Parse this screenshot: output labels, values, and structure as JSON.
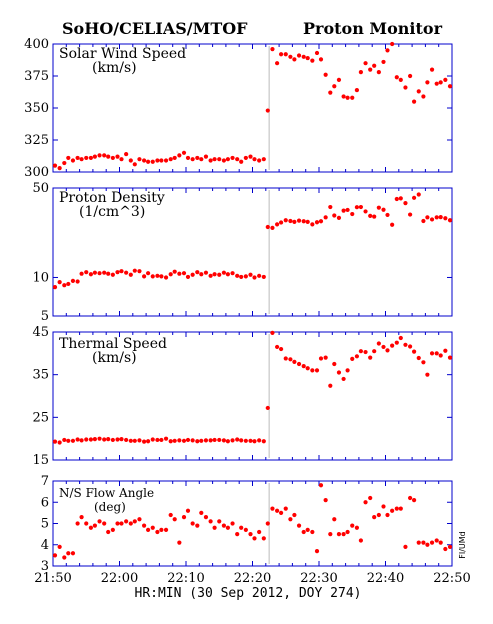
{
  "header": {
    "left_title": "SoHO/CELIAS/MTOF",
    "right_title": "Proton Monitor"
  },
  "xaxis": {
    "label": "HR:MIN (30 Sep 2012, DOY 274)",
    "ticks": [
      "21:50",
      "22:00",
      "22:10",
      "22:20",
      "22:30",
      "22:40",
      "22:50"
    ],
    "tick_minutes": [
      0,
      10,
      20,
      30,
      40,
      50,
      60
    ],
    "range_minutes": [
      0,
      60
    ],
    "marker_minute": 32.5
  },
  "credit": "FI/UMd",
  "colors": {
    "frame": "#0000cc",
    "points": "#ff0000",
    "marker": "#bbbbbb"
  },
  "chart_data": [
    {
      "type": "scatter",
      "label_line1": "Solar Wind Speed",
      "label_line2": "(km/s)",
      "scale": "linear",
      "ylim": [
        300,
        400
      ],
      "yticks": [
        300,
        325,
        350,
        375,
        400
      ],
      "x": [
        0.3,
        1.0,
        1.7,
        2.3,
        3.0,
        3.7,
        4.3,
        5.0,
        5.7,
        6.3,
        7.0,
        7.7,
        8.3,
        9.0,
        9.7,
        10.3,
        11.0,
        11.7,
        12.3,
        13.0,
        13.7,
        14.3,
        15.0,
        15.7,
        16.3,
        17.0,
        17.7,
        18.3,
        19.0,
        19.7,
        20.3,
        21.0,
        21.7,
        22.3,
        23.0,
        23.7,
        24.3,
        25.0,
        25.7,
        26.3,
        27.0,
        27.7,
        28.3,
        29.0,
        29.7,
        30.3,
        31.0,
        31.7,
        32.3,
        33.0,
        33.7,
        34.3,
        35.0,
        35.7,
        36.3,
        37.0,
        37.7,
        38.3,
        39.0,
        39.7,
        40.3,
        41.0,
        41.7,
        42.3,
        43.0,
        43.7,
        44.3,
        45.0,
        45.7,
        46.3,
        47.0,
        47.7,
        48.3,
        49.0,
        49.7,
        50.3,
        51.0,
        51.7,
        52.3,
        53.0,
        53.7,
        54.3,
        55.0,
        55.7,
        56.3,
        57.0,
        57.7,
        58.3,
        59.0,
        59.7
      ],
      "y": [
        305,
        303,
        307,
        311,
        309,
        311,
        310,
        311,
        311,
        312,
        313,
        313,
        312,
        311,
        312,
        310,
        314,
        309,
        306,
        310,
        309,
        308,
        308,
        309,
        309,
        309,
        310,
        311,
        313,
        315,
        311,
        310,
        311,
        310,
        312,
        309,
        310,
        310,
        309,
        310,
        311,
        310,
        308,
        311,
        312,
        310,
        309,
        310,
        348,
        396,
        385,
        392,
        392,
        390,
        388,
        391,
        390,
        389,
        387,
        393,
        388,
        376,
        362,
        367,
        372,
        359,
        358,
        358,
        364,
        378,
        385,
        380,
        383,
        378,
        386,
        395,
        400,
        374,
        372,
        366,
        375,
        355,
        363,
        359,
        370,
        380,
        369,
        370,
        372,
        367
      ]
    },
    {
      "type": "scatter",
      "label_line1": "Proton Density",
      "label_line2": "(1/cm^3)",
      "scale": "log",
      "ylim": [
        5,
        50
      ],
      "yticks": [
        5,
        10,
        50
      ],
      "x": [
        0.3,
        1.0,
        1.7,
        2.3,
        3.0,
        3.7,
        4.3,
        5.0,
        5.7,
        6.3,
        7.0,
        7.7,
        8.3,
        9.0,
        9.7,
        10.3,
        11.0,
        11.7,
        12.3,
        13.0,
        13.7,
        14.3,
        15.0,
        15.7,
        16.3,
        17.0,
        17.7,
        18.3,
        19.0,
        19.7,
        20.3,
        21.0,
        21.7,
        22.3,
        23.0,
        23.7,
        24.3,
        25.0,
        25.7,
        26.3,
        27.0,
        27.7,
        28.3,
        29.0,
        29.7,
        30.3,
        31.0,
        31.7,
        32.3,
        33.0,
        33.7,
        34.3,
        35.0,
        35.7,
        36.3,
        37.0,
        37.7,
        38.3,
        39.0,
        39.7,
        40.3,
        41.0,
        41.7,
        42.3,
        43.0,
        43.7,
        44.3,
        45.0,
        45.7,
        46.3,
        47.0,
        47.7,
        48.3,
        49.0,
        49.7,
        50.3,
        51.0,
        51.7,
        52.3,
        53.0,
        53.7,
        54.3,
        55.0,
        55.7,
        56.3,
        57.0,
        57.7,
        58.3,
        59.0,
        59.7
      ],
      "y": [
        8.4,
        9.2,
        8.7,
        8.9,
        9.4,
        9.3,
        10.7,
        11.0,
        10.6,
        10.9,
        10.8,
        10.9,
        10.7,
        10.5,
        11.0,
        11.2,
        10.9,
        10.5,
        11.3,
        11.2,
        10.2,
        10.8,
        10.2,
        10.3,
        10.2,
        10.0,
        10.6,
        11.1,
        10.7,
        10.8,
        10.1,
        10.5,
        11.0,
        10.6,
        10.9,
        10.3,
        10.6,
        10.5,
        10.9,
        10.6,
        10.8,
        10.3,
        10.1,
        10.2,
        10.5,
        10.0,
        10.3,
        10.1,
        24.8,
        24.4,
        26.0,
        26.9,
        28.0,
        27.6,
        27.2,
        27.8,
        27.5,
        27.2,
        26.0,
        27.0,
        27.5,
        29.5,
        35.5,
        30.5,
        29.2,
        33.3,
        33.7,
        31.3,
        35.4,
        35.5,
        32.8,
        30.3,
        29.9,
        35.1,
        33.8,
        30.8,
        25.8,
        41.0,
        41.5,
        38.1,
        31.0,
        41.9,
        44.5,
        27.6,
        29.5,
        28.4,
        29.5,
        29.6,
        29.0,
        28.0
      ]
    },
    {
      "type": "scatter",
      "label_line1": "Thermal Speed",
      "label_line2": "(km/s)",
      "scale": "linear",
      "ylim": [
        15,
        45
      ],
      "yticks": [
        15,
        25,
        35,
        45
      ],
      "x": [
        0.3,
        1.0,
        1.7,
        2.3,
        3.0,
        3.7,
        4.3,
        5.0,
        5.7,
        6.3,
        7.0,
        7.7,
        8.3,
        9.0,
        9.7,
        10.3,
        11.0,
        11.7,
        12.3,
        13.0,
        13.7,
        14.3,
        15.0,
        15.7,
        16.3,
        17.0,
        17.7,
        18.3,
        19.0,
        19.7,
        20.3,
        21.0,
        21.7,
        22.3,
        23.0,
        23.7,
        24.3,
        25.0,
        25.7,
        26.3,
        27.0,
        27.7,
        28.3,
        29.0,
        29.7,
        30.3,
        31.0,
        31.7,
        32.3,
        33.0,
        33.7,
        34.3,
        35.0,
        35.7,
        36.3,
        37.0,
        37.7,
        38.3,
        39.0,
        39.7,
        40.3,
        41.0,
        41.7,
        42.3,
        43.0,
        43.7,
        44.3,
        45.0,
        45.7,
        46.3,
        47.0,
        47.7,
        48.3,
        49.0,
        49.7,
        50.3,
        51.0,
        51.7,
        52.3,
        53.0,
        53.7,
        54.3,
        55.0,
        55.7,
        56.3,
        57.0,
        57.7,
        58.3,
        59.0,
        59.7
      ],
      "y": [
        19.3,
        19.1,
        19.7,
        19.5,
        19.5,
        19.8,
        19.6,
        19.8,
        19.8,
        19.9,
        20.0,
        19.8,
        19.9,
        19.7,
        19.8,
        19.9,
        19.7,
        19.5,
        19.5,
        19.6,
        19.3,
        19.4,
        19.8,
        19.7,
        19.7,
        20.0,
        19.4,
        19.5,
        19.6,
        19.5,
        19.7,
        19.6,
        19.4,
        19.5,
        19.6,
        19.6,
        19.7,
        19.7,
        19.6,
        19.4,
        19.6,
        19.8,
        19.6,
        19.5,
        19.5,
        19.4,
        19.6,
        19.4,
        27.2,
        44.8,
        41.5,
        41.0,
        38.8,
        38.6,
        38.0,
        37.5,
        37.0,
        36.5,
        36.0,
        36.0,
        38.8,
        39.0,
        32.4,
        37.5,
        35.5,
        34.0,
        36.0,
        38.7,
        39.3,
        40.5,
        40.3,
        39.0,
        40.5,
        42.3,
        41.5,
        40.7,
        41.8,
        42.5,
        43.6,
        42.0,
        41.6,
        40.4,
        38.9,
        37.9,
        35.0,
        40.0,
        40.0,
        39.5,
        40.6,
        39.0
      ]
    },
    {
      "type": "scatter",
      "label_line1": "N/S Flow Angle",
      "label_line2": "(deg)",
      "scale": "linear",
      "ylim": [
        3,
        7
      ],
      "yticks": [
        3,
        4,
        5,
        6,
        7
      ],
      "x": [
        0.3,
        1.0,
        1.7,
        2.3,
        3.0,
        3.7,
        4.3,
        5.0,
        5.7,
        6.3,
        7.0,
        7.7,
        8.3,
        9.0,
        9.7,
        10.3,
        11.0,
        11.7,
        12.3,
        13.0,
        13.7,
        14.3,
        15.0,
        15.7,
        16.3,
        17.0,
        17.7,
        18.3,
        19.0,
        19.7,
        20.3,
        21.0,
        21.7,
        22.3,
        23.0,
        23.7,
        24.3,
        25.0,
        25.7,
        26.3,
        27.0,
        27.7,
        28.3,
        29.0,
        29.7,
        30.3,
        31.0,
        31.7,
        32.3,
        33.0,
        33.7,
        34.3,
        35.0,
        35.7,
        36.3,
        37.0,
        37.7,
        38.3,
        39.0,
        39.7,
        40.3,
        41.0,
        41.7,
        42.3,
        43.0,
        43.7,
        44.3,
        45.0,
        45.7,
        46.3,
        47.0,
        47.7,
        48.3,
        49.0,
        49.7,
        50.3,
        51.0,
        51.7,
        52.3,
        53.0,
        53.7,
        54.3,
        55.0,
        55.7,
        56.3,
        57.0,
        57.7,
        58.3,
        59.0,
        59.7
      ],
      "y": [
        3.5,
        3.9,
        3.4,
        3.6,
        3.6,
        5.0,
        5.3,
        5.0,
        4.8,
        4.9,
        5.1,
        5.0,
        4.6,
        4.7,
        5.0,
        5.0,
        5.1,
        5.0,
        5.1,
        5.2,
        4.9,
        4.7,
        4.8,
        4.6,
        4.7,
        4.7,
        5.4,
        5.2,
        4.1,
        5.3,
        5.6,
        5.0,
        4.9,
        5.5,
        5.3,
        5.1,
        4.8,
        5.1,
        4.9,
        4.8,
        5.0,
        4.5,
        4.8,
        4.7,
        4.5,
        4.3,
        4.6,
        4.3,
        5.0,
        5.7,
        5.6,
        5.5,
        5.7,
        5.2,
        5.4,
        4.9,
        4.6,
        4.7,
        4.6,
        3.7,
        6.8,
        6.1,
        4.5,
        5.2,
        4.5,
        4.5,
        4.6,
        4.9,
        4.8,
        4.2,
        6.0,
        6.2,
        5.3,
        5.4,
        5.8,
        5.4,
        5.6,
        5.7,
        5.7,
        3.9,
        6.2,
        6.1,
        4.1,
        4.1,
        4.0,
        4.1,
        4.2,
        4.1,
        3.8,
        3.9
      ]
    }
  ]
}
